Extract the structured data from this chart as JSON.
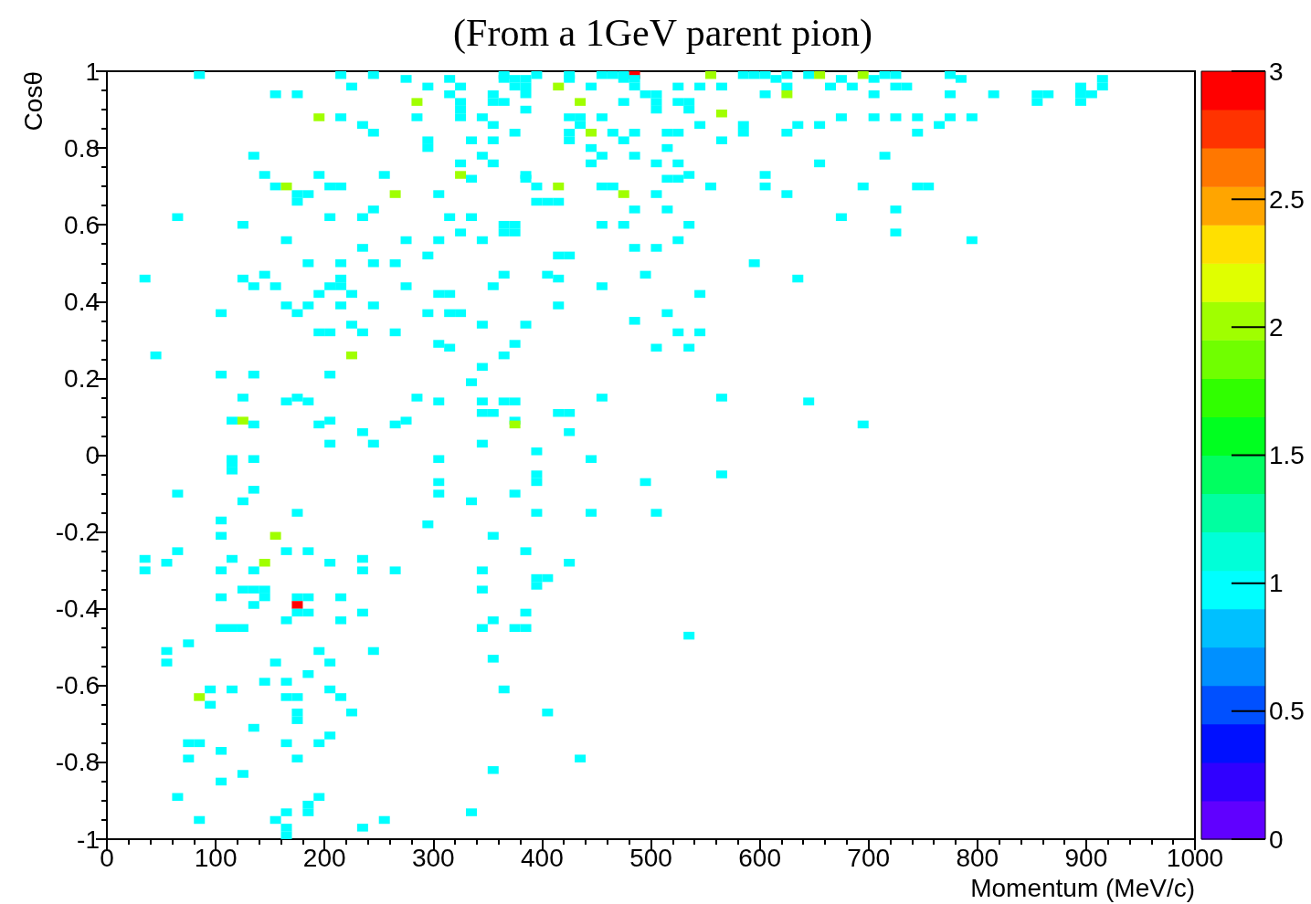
{
  "chart_data": {
    "type": "scatter",
    "title": "(From a 1GeV parent pion)",
    "xlabel": "Momentum (MeV/c)",
    "ylabel": "Cosθ",
    "marker": "square",
    "grid": false,
    "xlim": [
      0,
      1000
    ],
    "xticks": [
      0,
      100,
      200,
      300,
      400,
      500,
      600,
      700,
      800,
      900,
      1000
    ],
    "ylim": [
      -1,
      1
    ],
    "yticks": [
      -1,
      -0.8,
      -0.6,
      -0.4,
      -0.2,
      0,
      0.2,
      0.4,
      0.6,
      0.8,
      1
    ],
    "clim": [
      0,
      3
    ],
    "cticks": [
      0,
      0.5,
      1,
      1.5,
      2,
      2.5,
      3
    ],
    "x": [
      85,
      215,
      245,
      365,
      395,
      425,
      455,
      465,
      475,
      485,
      555,
      585,
      595,
      605,
      625,
      645,
      655,
      695,
      715,
      725,
      775,
      275,
      315,
      365,
      375,
      385,
      425,
      475,
      485,
      615,
      675,
      705,
      785,
      915,
      225,
      295,
      325,
      375,
      385,
      415,
      445,
      485,
      525,
      545,
      565,
      625,
      665,
      685,
      725,
      735,
      895,
      915,
      155,
      175,
      315,
      355,
      385,
      495,
      505,
      605,
      625,
      705,
      775,
      815,
      855,
      865,
      895,
      905,
      285,
      325,
      355,
      365,
      435,
      475,
      505,
      525,
      535,
      855,
      895,
      325,
      385,
      505,
      535,
      565,
      195,
      215,
      285,
      325,
      345,
      425,
      435,
      455,
      675,
      705,
      725,
      745,
      775,
      795,
      235,
      355,
      435,
      545,
      585,
      635,
      655,
      765,
      245,
      375,
      425,
      445,
      465,
      485,
      515,
      525,
      585,
      625,
      745,
      295,
      335,
      355,
      425,
      475,
      565,
      295,
      445,
      515,
      135,
      345,
      455,
      485,
      715,
      325,
      355,
      445,
      505,
      525,
      655,
      145,
      195,
      255,
      325,
      385,
      535,
      605,
      335,
      385,
      515,
      525,
      155,
      165,
      205,
      215,
      395,
      415,
      455,
      465,
      555,
      605,
      695,
      745,
      755,
      175,
      185,
      265,
      305,
      475,
      505,
      625,
      175,
      395,
      405,
      415,
      245,
      485,
      515,
      725,
      65,
      205,
      235,
      315,
      335,
      675,
      125,
      365,
      375,
      455,
      475,
      535,
      325,
      365,
      375,
      725,
      165,
      275,
      305,
      345,
      525,
      795,
      235,
      485,
      505,
      295,
      415,
      425,
      185,
      215,
      245,
      265,
      595,
      145,
      365,
      405,
      495,
      35,
      125,
      215,
      415,
      635,
      135,
      155,
      205,
      215,
      275,
      355,
      455,
      195,
      225,
      305,
      315,
      545,
      165,
      185,
      215,
      245,
      415,
      105,
      175,
      295,
      315,
      325,
      515,
      485,
      225,
      345,
      385,
      195,
      205,
      235,
      265,
      525,
      545,
      305,
      375,
      315,
      505,
      535,
      45,
      225,
      365,
      345,
      105,
      135,
      205,
      335,
      125,
      175,
      285,
      455,
      565,
      165,
      185,
      305,
      345,
      365,
      375,
      645,
      345,
      355,
      415,
      425,
      115,
      125,
      205,
      275,
      375,
      135,
      195,
      265,
      375,
      695,
      235,
      425,
      205,
      245,
      345,
      395,
      115,
      135,
      305,
      445,
      115,
      115,
      395,
      565,
      305,
      395,
      495,
      135,
      65,
      305,
      375,
      125,
      335,
      175,
      395,
      445,
      505,
      105,
      295,
      105,
      155,
      355,
      65,
      165,
      185,
      385,
      35,
      115,
      235,
      55,
      145,
      205,
      425,
      35,
      105,
      135,
      235,
      265,
      345,
      395,
      405,
      395,
      125,
      135,
      145,
      345,
      105,
      145,
      175,
      185,
      215,
      135,
      175,
      175,
      185,
      235,
      385,
      165,
      215,
      355,
      105,
      115,
      125,
      345,
      375,
      385,
      535,
      75,
      55,
      195,
      245,
      355,
      55,
      155,
      205,
      185,
      145,
      165,
      95,
      115,
      205,
      365,
      85,
      165,
      175,
      215,
      95,
      175,
      225,
      405,
      175,
      135,
      205,
      75,
      85,
      165,
      195,
      105,
      75,
      175,
      435,
      355,
      125,
      105,
      65,
      195,
      185,
      165,
      185,
      335,
      85,
      155,
      255,
      165,
      235,
      165
    ],
    "values": [
      0.99,
      0.99,
      0.99,
      0.99,
      0.99,
      0.99,
      0.99,
      0.99,
      0.99,
      0.99,
      0.99,
      0.99,
      0.99,
      0.99,
      0.99,
      0.99,
      0.99,
      0.99,
      0.99,
      0.99,
      0.99,
      0.98,
      0.98,
      0.98,
      0.98,
      0.98,
      0.98,
      0.98,
      0.98,
      0.98,
      0.98,
      0.98,
      0.98,
      0.98,
      0.96,
      0.96,
      0.96,
      0.96,
      0.96,
      0.96,
      0.96,
      0.96,
      0.96,
      0.96,
      0.96,
      0.96,
      0.96,
      0.96,
      0.96,
      0.96,
      0.96,
      0.96,
      0.94,
      0.94,
      0.94,
      0.94,
      0.94,
      0.94,
      0.94,
      0.94,
      0.94,
      0.94,
      0.94,
      0.94,
      0.94,
      0.94,
      0.94,
      0.94,
      0.92,
      0.92,
      0.92,
      0.92,
      0.92,
      0.92,
      0.92,
      0.92,
      0.92,
      0.92,
      0.92,
      0.9,
      0.9,
      0.9,
      0.9,
      0.89,
      0.88,
      0.88,
      0.88,
      0.88,
      0.88,
      0.88,
      0.88,
      0.88,
      0.88,
      0.88,
      0.88,
      0.88,
      0.88,
      0.88,
      0.86,
      0.86,
      0.86,
      0.86,
      0.86,
      0.86,
      0.86,
      0.86,
      0.84,
      0.84,
      0.84,
      0.84,
      0.84,
      0.84,
      0.84,
      0.84,
      0.84,
      0.84,
      0.84,
      0.82,
      0.82,
      0.82,
      0.82,
      0.82,
      0.82,
      0.8,
      0.8,
      0.8,
      0.78,
      0.78,
      0.78,
      0.78,
      0.78,
      0.76,
      0.76,
      0.76,
      0.76,
      0.76,
      0.76,
      0.73,
      0.73,
      0.73,
      0.73,
      0.73,
      0.73,
      0.73,
      0.72,
      0.72,
      0.72,
      0.72,
      0.7,
      0.7,
      0.7,
      0.7,
      0.7,
      0.7,
      0.7,
      0.7,
      0.7,
      0.7,
      0.7,
      0.7,
      0.7,
      0.68,
      0.68,
      0.68,
      0.68,
      0.68,
      0.68,
      0.68,
      0.66,
      0.66,
      0.66,
      0.66,
      0.64,
      0.64,
      0.64,
      0.64,
      0.62,
      0.62,
      0.62,
      0.62,
      0.62,
      0.62,
      0.6,
      0.6,
      0.6,
      0.6,
      0.6,
      0.6,
      0.58,
      0.58,
      0.58,
      0.58,
      0.56,
      0.56,
      0.56,
      0.56,
      0.56,
      0.56,
      0.54,
      0.54,
      0.54,
      0.52,
      0.52,
      0.52,
      0.5,
      0.5,
      0.5,
      0.5,
      0.5,
      0.47,
      0.47,
      0.47,
      0.47,
      0.46,
      0.46,
      0.46,
      0.46,
      0.46,
      0.44,
      0.44,
      0.44,
      0.44,
      0.44,
      0.44,
      0.44,
      0.42,
      0.42,
      0.42,
      0.42,
      0.42,
      0.39,
      0.39,
      0.39,
      0.39,
      0.39,
      0.37,
      0.37,
      0.37,
      0.37,
      0.37,
      0.37,
      0.35,
      0.34,
      0.34,
      0.34,
      0.32,
      0.32,
      0.32,
      0.32,
      0.32,
      0.32,
      0.29,
      0.29,
      0.28,
      0.28,
      0.28,
      0.26,
      0.26,
      0.26,
      0.23,
      0.21,
      0.21,
      0.21,
      0.19,
      0.15,
      0.15,
      0.15,
      0.15,
      0.15,
      0.14,
      0.14,
      0.14,
      0.14,
      0.14,
      0.14,
      0.14,
      0.11,
      0.11,
      0.11,
      0.11,
      0.09,
      0.09,
      0.09,
      0.09,
      0.09,
      0.08,
      0.08,
      0.08,
      0.08,
      0.08,
      0.06,
      0.06,
      0.03,
      0.03,
      0.03,
      0.01,
      -0.01,
      -0.01,
      -0.01,
      -0.01,
      -0.02,
      -0.04,
      -0.05,
      -0.05,
      -0.07,
      -0.07,
      -0.07,
      -0.09,
      -0.1,
      -0.1,
      -0.1,
      -0.12,
      -0.12,
      -0.15,
      -0.15,
      -0.15,
      -0.15,
      -0.17,
      -0.18,
      -0.21,
      -0.21,
      -0.21,
      -0.25,
      -0.25,
      -0.25,
      -0.25,
      -0.27,
      -0.27,
      -0.27,
      -0.28,
      -0.28,
      -0.28,
      -0.28,
      -0.3,
      -0.3,
      -0.3,
      -0.3,
      -0.3,
      -0.3,
      -0.32,
      -0.32,
      -0.34,
      -0.35,
      -0.35,
      -0.35,
      -0.35,
      -0.37,
      -0.37,
      -0.37,
      -0.37,
      -0.37,
      -0.39,
      -0.39,
      -0.41,
      -0.41,
      -0.41,
      -0.41,
      -0.43,
      -0.43,
      -0.43,
      -0.45,
      -0.45,
      -0.45,
      -0.45,
      -0.45,
      -0.45,
      -0.47,
      -0.49,
      -0.51,
      -0.51,
      -0.51,
      -0.53,
      -0.54,
      -0.54,
      -0.54,
      -0.57,
      -0.59,
      -0.59,
      -0.61,
      -0.61,
      -0.61,
      -0.61,
      -0.63,
      -0.63,
      -0.63,
      -0.63,
      -0.65,
      -0.67,
      -0.67,
      -0.67,
      -0.69,
      -0.71,
      -0.73,
      -0.75,
      -0.75,
      -0.75,
      -0.75,
      -0.77,
      -0.79,
      -0.79,
      -0.79,
      -0.82,
      -0.83,
      -0.85,
      -0.89,
      -0.89,
      -0.91,
      -0.93,
      -0.93,
      -0.93,
      -0.95,
      -0.95,
      -0.95,
      -0.97,
      -0.97,
      -0.99
    ],
    "cvalues": [
      1,
      1,
      1,
      1,
      1,
      1,
      1,
      1,
      1,
      3,
      2,
      1,
      1,
      1,
      1,
      1,
      2,
      2,
      1,
      1,
      1,
      1,
      1,
      1,
      1,
      1,
      1,
      1,
      1,
      1,
      1,
      1,
      1,
      1,
      1,
      1,
      1,
      1,
      1,
      2,
      1,
      1,
      1,
      1,
      1,
      1,
      1,
      1,
      1,
      1,
      1,
      1,
      1,
      1,
      1,
      1,
      1,
      1,
      1,
      1,
      2,
      1,
      1,
      1,
      1,
      1,
      1,
      1,
      2,
      1,
      1,
      1,
      2,
      1,
      1,
      1,
      1,
      1,
      1,
      1,
      1,
      1,
      1,
      2,
      2,
      1,
      1,
      1,
      1,
      1,
      1,
      1,
      1,
      1,
      1,
      1,
      1,
      1,
      1,
      1,
      1,
      1,
      1,
      1,
      1,
      1,
      1,
      1,
      1,
      2,
      1,
      1,
      1,
      1,
      1,
      1,
      1,
      1,
      1,
      1,
      1,
      1,
      1,
      1,
      1,
      1,
      1,
      1,
      1,
      1,
      1,
      1,
      1,
      1,
      1,
      1,
      1,
      1,
      1,
      1,
      2,
      1,
      1,
      1,
      1,
      1,
      1,
      1,
      1,
      2,
      1,
      1,
      1,
      2,
      1,
      1,
      1,
      1,
      1,
      1,
      1,
      1,
      1,
      2,
      1,
      2,
      1,
      1,
      1,
      1,
      1,
      1,
      1,
      1,
      1,
      1,
      1,
      1,
      1,
      1,
      1,
      1,
      1,
      1,
      1,
      1,
      1,
      1,
      1,
      1,
      1,
      1,
      1,
      1,
      1,
      1,
      1,
      1,
      1,
      1,
      1,
      1,
      1,
      1,
      1,
      1,
      1,
      1,
      1,
      1,
      1,
      1,
      1,
      1,
      1,
      1,
      1,
      1,
      1,
      1,
      1,
      1,
      1,
      1,
      1,
      1,
      1,
      1,
      1,
      1,
      1,
      1,
      1,
      1,
      1,
      1,
      1,
      1,
      1,
      1,
      1,
      1,
      1,
      1,
      1,
      1,
      1,
      1,
      1,
      1,
      1,
      1,
      1,
      1,
      1,
      1,
      1,
      2,
      1,
      1,
      1,
      1,
      1,
      1,
      1,
      1,
      1,
      1,
      1,
      1,
      1,
      1,
      1,
      1,
      1,
      1,
      1,
      1,
      1,
      1,
      1,
      2,
      1,
      1,
      1,
      1,
      1,
      1,
      2,
      1,
      1,
      1,
      1,
      1,
      1,
      1,
      1,
      1,
      1,
      1,
      1,
      1,
      1,
      1,
      1,
      1,
      1,
      1,
      1,
      1,
      1,
      1,
      1,
      1,
      1,
      1,
      1,
      1,
      1,
      1,
      2,
      1,
      1,
      1,
      1,
      1,
      1,
      1,
      1,
      1,
      2,
      1,
      1,
      1,
      1,
      1,
      1,
      1,
      1,
      1,
      1,
      1,
      1,
      1,
      1,
      1,
      1,
      1,
      1,
      1,
      1,
      1,
      3,
      1,
      1,
      1,
      1,
      1,
      1,
      1,
      1,
      1,
      1,
      1,
      1,
      1,
      1,
      1,
      1,
      1,
      1,
      1,
      1,
      1,
      1,
      1,
      1,
      1,
      1,
      1,
      1,
      1,
      2,
      1,
      1,
      1,
      1,
      1,
      1,
      1,
      1,
      1,
      1,
      1,
      1,
      1,
      1,
      1,
      1,
      1,
      1,
      1,
      1,
      1,
      1,
      1,
      1,
      1,
      1,
      1,
      1,
      1,
      1,
      1,
      1,
      1
    ]
  }
}
